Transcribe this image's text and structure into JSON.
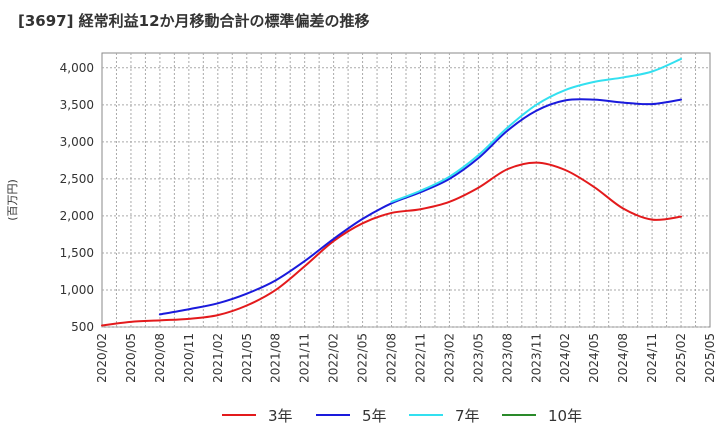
{
  "title": "[3697]  経常利益12か月移動合計の標準偏差の推移",
  "chart_data": {
    "type": "line",
    "title": "[3697]  経常利益12か月移動合計の標準偏差の推移",
    "ylabel": "(百万円)",
    "xlabel": "",
    "ylim": [
      500,
      4200
    ],
    "yticks": [
      500,
      1000,
      1500,
      2000,
      2500,
      3000,
      3500,
      4000
    ],
    "ytick_labels": [
      "500",
      "1,000",
      "1,500",
      "2,000",
      "2,500",
      "3,000",
      "3,500",
      "4,000"
    ],
    "xticks": [
      "2020/02",
      "2020/05",
      "2020/08",
      "2020/11",
      "2021/02",
      "2021/05",
      "2021/08",
      "2021/11",
      "2022/02",
      "2022/05",
      "2022/08",
      "2022/11",
      "2023/02",
      "2023/05",
      "2023/08",
      "2023/11",
      "2024/02",
      "2024/05",
      "2024/08",
      "2024/11",
      "2025/02",
      "2025/05"
    ],
    "grid": true,
    "legend_position": "bottom",
    "series": [
      {
        "name": "3年",
        "color": "#e31a1c",
        "x": [
          "2020/02",
          "2020/05",
          "2020/08",
          "2020/11",
          "2021/02",
          "2021/05",
          "2021/08",
          "2021/11",
          "2022/02",
          "2022/05",
          "2022/08",
          "2022/11",
          "2023/02",
          "2023/05",
          "2023/08",
          "2023/11",
          "2024/02",
          "2024/05",
          "2024/08",
          "2024/11",
          "2025/02"
        ],
        "values": [
          520,
          570,
          590,
          610,
          660,
          790,
          1000,
          1320,
          1660,
          1900,
          2040,
          2090,
          2190,
          2380,
          2630,
          2720,
          2620,
          2390,
          2100,
          1950,
          1990
        ]
      },
      {
        "name": "5年",
        "color": "#1a1adc",
        "x": [
          "2020/08",
          "2020/11",
          "2021/02",
          "2021/05",
          "2021/08",
          "2021/11",
          "2022/02",
          "2022/05",
          "2022/08",
          "2022/11",
          "2023/02",
          "2023/05",
          "2023/08",
          "2023/11",
          "2024/02",
          "2024/05",
          "2024/08",
          "2024/11",
          "2025/02"
        ],
        "values": [
          670,
          740,
          820,
          950,
          1130,
          1390,
          1690,
          1960,
          2170,
          2320,
          2500,
          2780,
          3150,
          3420,
          3560,
          3570,
          3530,
          3510,
          3570
        ]
      },
      {
        "name": "7年",
        "color": "#33e0f0",
        "x": [
          "2022/08",
          "2022/11",
          "2023/02",
          "2023/05",
          "2023/08",
          "2023/11",
          "2024/02",
          "2024/05",
          "2024/08",
          "2024/11",
          "2025/02"
        ],
        "values": [
          2190,
          2340,
          2530,
          2820,
          3190,
          3500,
          3700,
          3810,
          3870,
          3950,
          4120
        ]
      },
      {
        "name": "10年",
        "color": "#2a8a2a",
        "x": [],
        "values": []
      }
    ]
  }
}
